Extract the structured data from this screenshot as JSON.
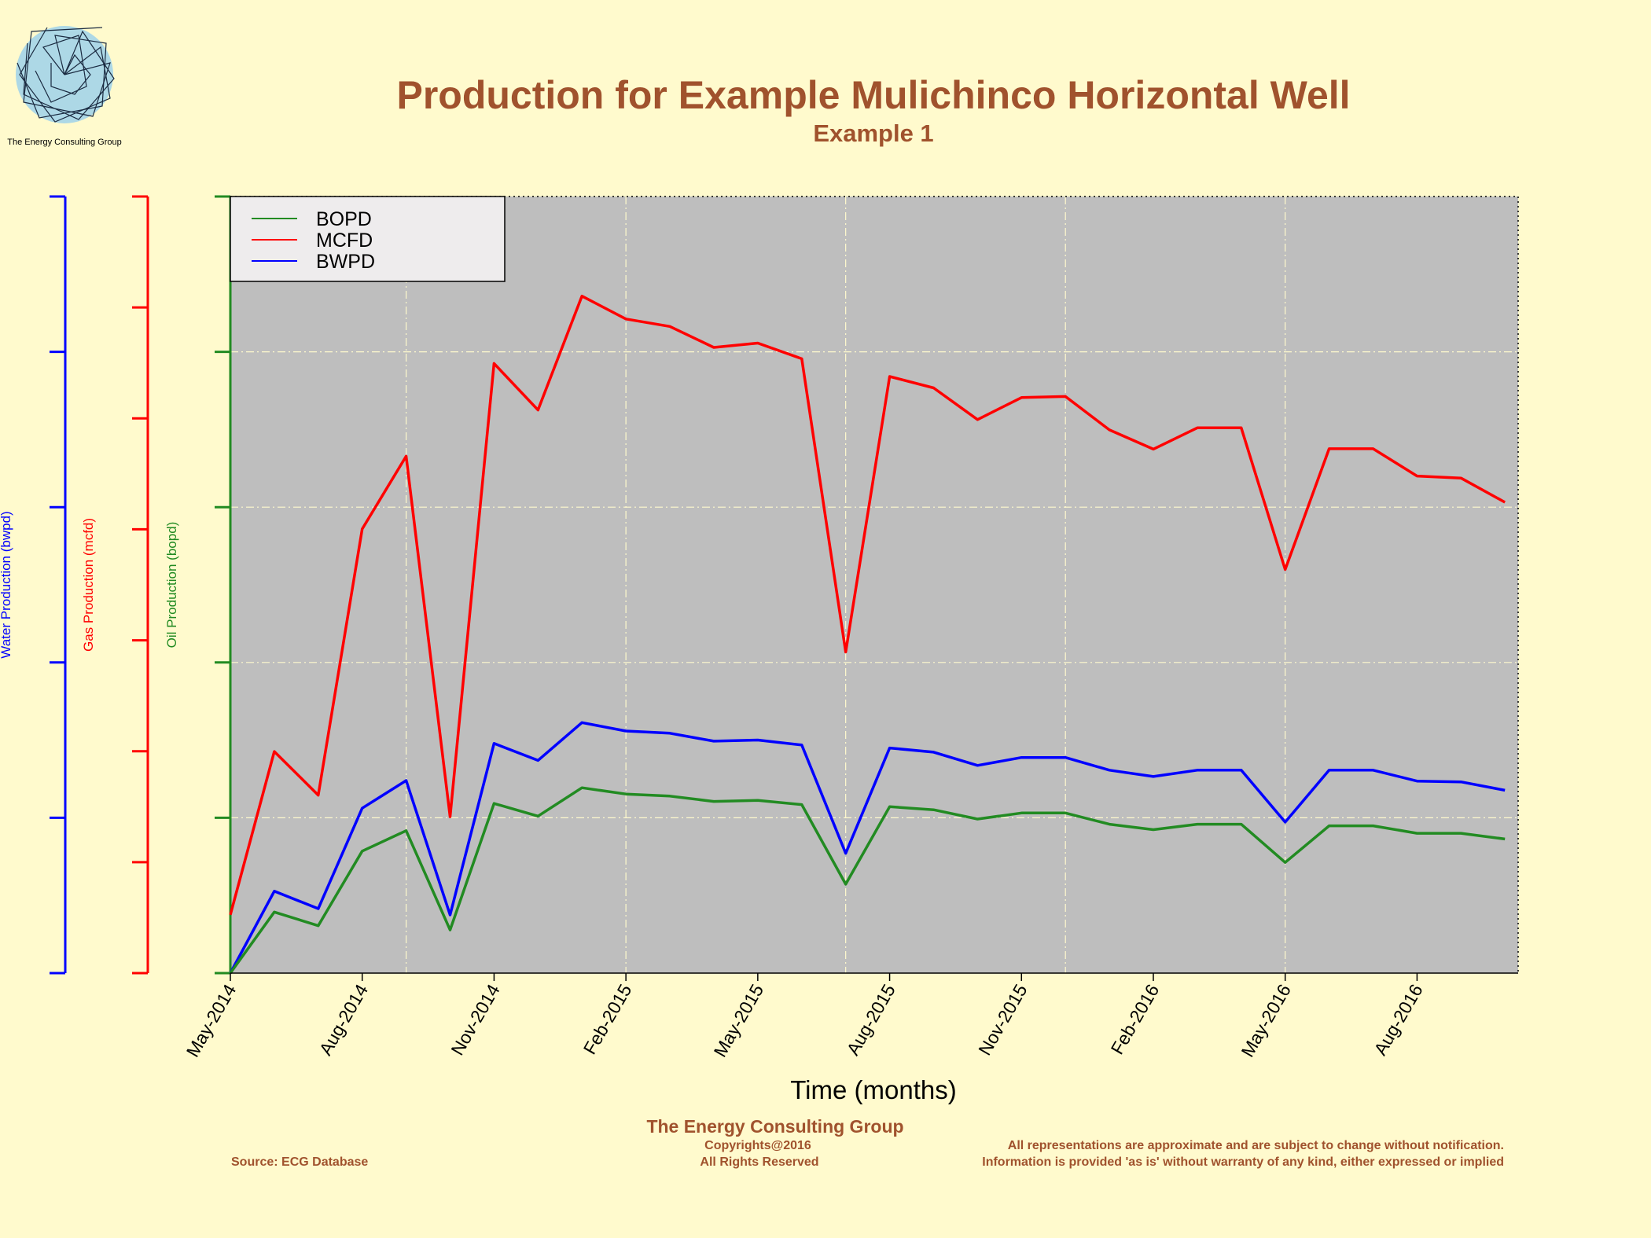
{
  "logo": {
    "caption": "The Energy Consulting Group"
  },
  "footer": {
    "company": "The Energy Consulting Group",
    "copyright": "Copyrights@2016",
    "rights": "All Rights Reserved",
    "source": "Source: ECG Database",
    "disclaimer_1": "All representations are approximate and are subject to change without notification.",
    "disclaimer_2": "Information is provided 'as is' without warranty of any kind, either expressed or implied"
  },
  "colors": {
    "background": "#fffacd",
    "plot_bg": "#bebebe",
    "oil": "#228b22",
    "gas": "#ff0000",
    "water": "#0000ff",
    "title": "#a0522d",
    "grid": "#fffacd"
  },
  "chart_data": {
    "type": "line",
    "title": "Production for Example Mulichinco Horizontal Well",
    "subtitle": "Example 1",
    "xlabel": "Time (months)",
    "y_axes": [
      {
        "label": "Oil Production (bopd)",
        "series": "BOPD"
      },
      {
        "label": "Gas Production (mcfd)",
        "series": "MCFD"
      },
      {
        "label": "Water Production (bwpd)",
        "series": "BWPD"
      }
    ],
    "x_ticks": [
      "May-2014",
      "Aug-2014",
      "Nov-2014",
      "Feb-2015",
      "May-2015",
      "Aug-2015",
      "Nov-2015",
      "Feb-2016",
      "May-2016",
      "Aug-2016"
    ],
    "x": [
      "2014-05",
      "2014-06",
      "2014-07",
      "2014-08",
      "2014-09",
      "2014-10",
      "2014-11",
      "2014-12",
      "2015-01",
      "2015-02",
      "2015-03",
      "2015-04",
      "2015-05",
      "2015-06",
      "2015-07",
      "2015-08",
      "2015-09",
      "2015-10",
      "2015-11",
      "2015-12",
      "2016-01",
      "2016-02",
      "2016-03",
      "2016-04",
      "2016-05",
      "2016-06",
      "2016-07",
      "2016-08",
      "2016-09",
      "2016-10"
    ],
    "ylim": [
      0,
      1
    ],
    "grid": true,
    "legend_position": "top-left",
    "note": "",
    "series": [
      {
        "name": "BOPD",
        "color": "#228b22",
        "values": [
          0.0,
          0.0786,
          0.061,
          0.1571,
          0.1834,
          0.0556,
          0.2184,
          0.2021,
          0.2387,
          0.2306,
          0.2279,
          0.2211,
          0.2225,
          0.217,
          0.1145,
          0.2143,
          0.2103,
          0.1984,
          0.2062,
          0.2062,
          0.1917,
          0.1847,
          0.1917,
          0.1917,
          0.1425,
          0.1897,
          0.1897,
          0.1801,
          0.1801,
          0.1727
        ]
      },
      {
        "name": "MCFD",
        "color": "#ff0000",
        "values": [
          0.0751,
          0.2853,
          0.2291,
          0.5719,
          0.6656,
          0.2013,
          0.785,
          0.7251,
          0.8718,
          0.8423,
          0.8327,
          0.8057,
          0.8112,
          0.7911,
          0.4135,
          0.7682,
          0.7535,
          0.7128,
          0.7411,
          0.7425,
          0.6995,
          0.6747,
          0.7021,
          0.7021,
          0.5197,
          0.6752,
          0.6752,
          0.6401,
          0.6374,
          0.6063
        ]
      },
      {
        "name": "BWPD",
        "color": "#0000ff",
        "values": [
          0.0,
          0.1055,
          0.083,
          0.2123,
          0.248,
          0.0749,
          0.2957,
          0.2739,
          0.3226,
          0.3117,
          0.3089,
          0.2987,
          0.3001,
          0.2937,
          0.1543,
          0.2899,
          0.2845,
          0.2674,
          0.2776,
          0.2776,
          0.2613,
          0.2531,
          0.2613,
          0.2613,
          0.1944,
          0.2613,
          0.2613,
          0.2473,
          0.2463,
          0.2354
        ]
      }
    ]
  }
}
